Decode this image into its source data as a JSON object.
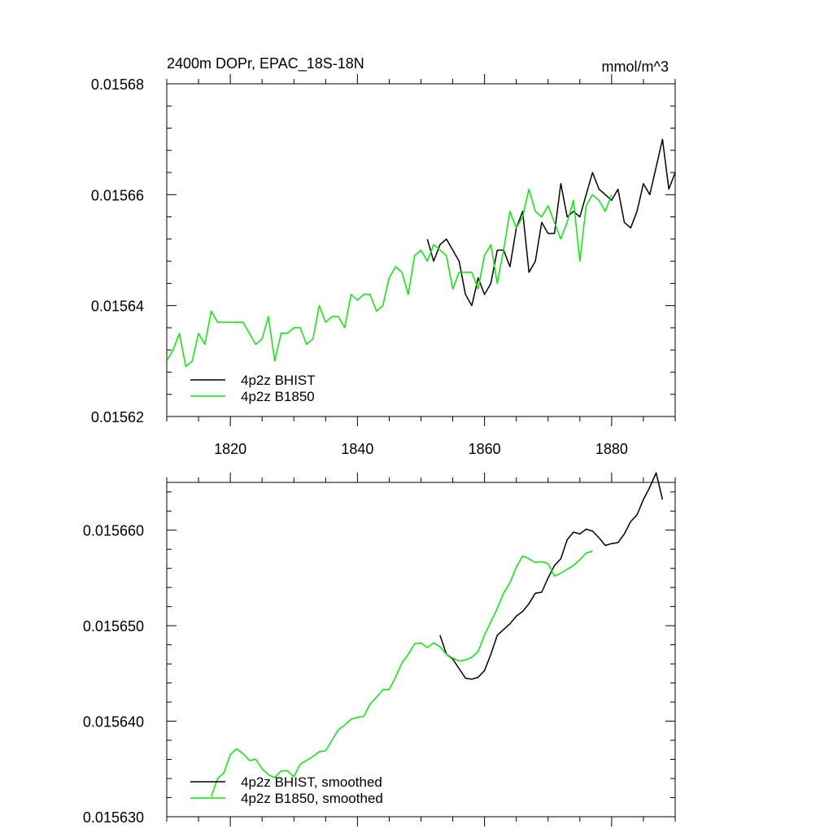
{
  "chart_data": [
    {
      "type": "line",
      "title": "2400m DOPr, EPAC_18S-18N",
      "units": "mmol/m^3",
      "xlim": [
        1810,
        1890
      ],
      "ylim": [
        0.01562,
        0.01568
      ],
      "xticks": [
        1820,
        1840,
        1860,
        1880
      ],
      "xtick_labels": [
        "1820",
        "1840",
        "1860",
        "1880"
      ],
      "yticks": [
        0.01562,
        0.01564,
        0.01566,
        0.01568
      ],
      "ytick_labels": [
        "0.01562",
        "0.01564",
        "0.01566",
        "0.01568"
      ],
      "grid": false,
      "legend_position": "bottom-left",
      "series": [
        {
          "name": "4p2z BHIST",
          "color": "#000000",
          "x": [
            1851,
            1852,
            1853,
            1854,
            1855,
            1856,
            1857,
            1858,
            1859,
            1860,
            1861,
            1862,
            1863,
            1864,
            1865,
            1866,
            1867,
            1868,
            1869,
            1870,
            1871,
            1872,
            1873,
            1874,
            1875,
            1876,
            1877,
            1878,
            1879,
            1880,
            1881,
            1882,
            1883,
            1884,
            1885,
            1886,
            1887,
            1888,
            1889,
            1890
          ],
          "y": [
            0.015652,
            0.015648,
            0.015651,
            0.015652,
            0.01565,
            0.015648,
            0.015642,
            0.01564,
            0.015645,
            0.015642,
            0.015644,
            0.01565,
            0.01565,
            0.015647,
            0.015654,
            0.015657,
            0.015646,
            0.015648,
            0.015655,
            0.015653,
            0.015653,
            0.015662,
            0.015656,
            0.015657,
            0.015656,
            0.01566,
            0.015664,
            0.015661,
            0.01566,
            0.015659,
            0.015661,
            0.015655,
            0.015654,
            0.015657,
            0.015662,
            0.01566,
            0.015665,
            0.01567,
            0.015661,
            0.015664
          ]
        },
        {
          "name": "4p2z B1850",
          "color": "#00ee00",
          "x": [
            1810,
            1811,
            1812,
            1813,
            1814,
            1815,
            1816,
            1817,
            1818,
            1819,
            1820,
            1821,
            1822,
            1823,
            1824,
            1825,
            1826,
            1827,
            1828,
            1829,
            1830,
            1831,
            1832,
            1833,
            1834,
            1835,
            1836,
            1837,
            1838,
            1839,
            1840,
            1841,
            1842,
            1843,
            1844,
            1845,
            1846,
            1847,
            1848,
            1849,
            1850,
            1851,
            1852,
            1853,
            1854,
            1855,
            1856,
            1857,
            1858,
            1859,
            1860,
            1861,
            1862,
            1863,
            1864,
            1865,
            1866,
            1867,
            1868,
            1869,
            1870,
            1871,
            1872,
            1873,
            1874,
            1875,
            1876,
            1877,
            1878,
            1879,
            1880
          ],
          "y": [
            0.01563,
            0.015632,
            0.015635,
            0.015629,
            0.01563,
            0.015635,
            0.015633,
            0.015639,
            0.015637,
            0.015637,
            0.015637,
            0.015637,
            0.015637,
            0.015635,
            0.015633,
            0.015634,
            0.015638,
            0.01563,
            0.015635,
            0.015635,
            0.015636,
            0.015636,
            0.015633,
            0.015634,
            0.01564,
            0.015637,
            0.015638,
            0.015638,
            0.015636,
            0.015642,
            0.015641,
            0.015642,
            0.015642,
            0.015639,
            0.01564,
            0.015645,
            0.015647,
            0.015646,
            0.015642,
            0.015649,
            0.01565,
            0.015648,
            0.015651,
            0.01565,
            0.015649,
            0.015643,
            0.015646,
            0.015646,
            0.015646,
            0.015643,
            0.015649,
            0.015651,
            0.015644,
            0.01565,
            0.015657,
            0.015654,
            0.015656,
            0.015661,
            0.015657,
            0.015656,
            0.015658,
            0.015655,
            0.015652,
            0.015655,
            0.015659,
            0.015648,
            0.015658,
            0.01566,
            0.015659,
            0.015657,
            0.01566
          ]
        }
      ]
    },
    {
      "type": "line",
      "xlim": [
        1810,
        1890
      ],
      "ylim": [
        0.01563,
        0.015665
      ],
      "xticks": [
        1820,
        1840,
        1860,
        1880
      ],
      "xtick_labels": [],
      "yticks": [
        0.01563,
        0.01564,
        0.01565,
        0.01566
      ],
      "ytick_labels": [
        "0.015630",
        "0.015640",
        "0.015650",
        "0.015660"
      ],
      "grid": false,
      "legend_position": "bottom-left",
      "series": [
        {
          "name": "4p2z BHIST, smoothed",
          "color": "#000000",
          "x": [
            1853,
            1854,
            1855,
            1856,
            1857,
            1858,
            1859,
            1860,
            1861,
            1862,
            1863,
            1864,
            1865,
            1866,
            1867,
            1868,
            1869,
            1870,
            1871,
            1872,
            1873,
            1874,
            1875,
            1876,
            1877,
            1878,
            1879,
            1880,
            1881,
            1882,
            1883,
            1884,
            1885,
            1886,
            1887,
            1888
          ],
          "y": [
            0.015649,
            0.015647,
            0.0156465,
            0.0156455,
            0.0156445,
            0.0156444,
            0.0156446,
            0.0156453,
            0.015647,
            0.015649,
            0.0156496,
            0.0156502,
            0.015651,
            0.0156515,
            0.0156523,
            0.0156534,
            0.0156535,
            0.015655,
            0.0156563,
            0.015657,
            0.015659,
            0.0156598,
            0.0156596,
            0.0156601,
            0.0156599,
            0.0156592,
            0.0156584,
            0.0156586,
            0.0156587,
            0.0156596,
            0.0156609,
            0.0156616,
            0.0156632,
            0.0156645,
            0.015666,
            0.0156632
          ]
        },
        {
          "name": "4p2z B1850, smoothed",
          "color": "#00ee00",
          "x": [
            1817,
            1818,
            1819,
            1820,
            1821,
            1822,
            1823,
            1824,
            1825,
            1826,
            1827,
            1828,
            1829,
            1830,
            1831,
            1832,
            1833,
            1834,
            1835,
            1836,
            1837,
            1838,
            1839,
            1840,
            1841,
            1842,
            1843,
            1844,
            1845,
            1846,
            1847,
            1848,
            1849,
            1850,
            1851,
            1852,
            1853,
            1854,
            1855,
            1856,
            1857,
            1858,
            1859,
            1860,
            1861,
            1862,
            1863,
            1864,
            1865,
            1866,
            1867,
            1868,
            1869,
            1870,
            1871,
            1872,
            1873,
            1874,
            1875,
            1876,
            1877
          ],
          "y": [
            0.0156321,
            0.015634,
            0.0156346,
            0.0156365,
            0.0156371,
            0.0156366,
            0.0156359,
            0.015636,
            0.015635,
            0.0156344,
            0.0156341,
            0.0156348,
            0.0156348,
            0.0156342,
            0.0156355,
            0.0156359,
            0.0156363,
            0.0156368,
            0.0156369,
            0.015638,
            0.0156391,
            0.0156396,
            0.0156402,
            0.0156404,
            0.0156405,
            0.0156418,
            0.0156425,
            0.0156433,
            0.0156433,
            0.0156446,
            0.0156461,
            0.015647,
            0.0156481,
            0.0156482,
            0.0156477,
            0.0156482,
            0.0156478,
            0.015647,
            0.0156466,
            0.0156463,
            0.0156464,
            0.0156467,
            0.0156473,
            0.015649,
            0.0156504,
            0.0156518,
            0.0156534,
            0.0156545,
            0.0156561,
            0.0156573,
            0.015657,
            0.0156566,
            0.0156567,
            0.0156565,
            0.0156552,
            0.0156555,
            0.0156559,
            0.0156563,
            0.0156569,
            0.0156576,
            0.0156578
          ]
        }
      ]
    }
  ]
}
